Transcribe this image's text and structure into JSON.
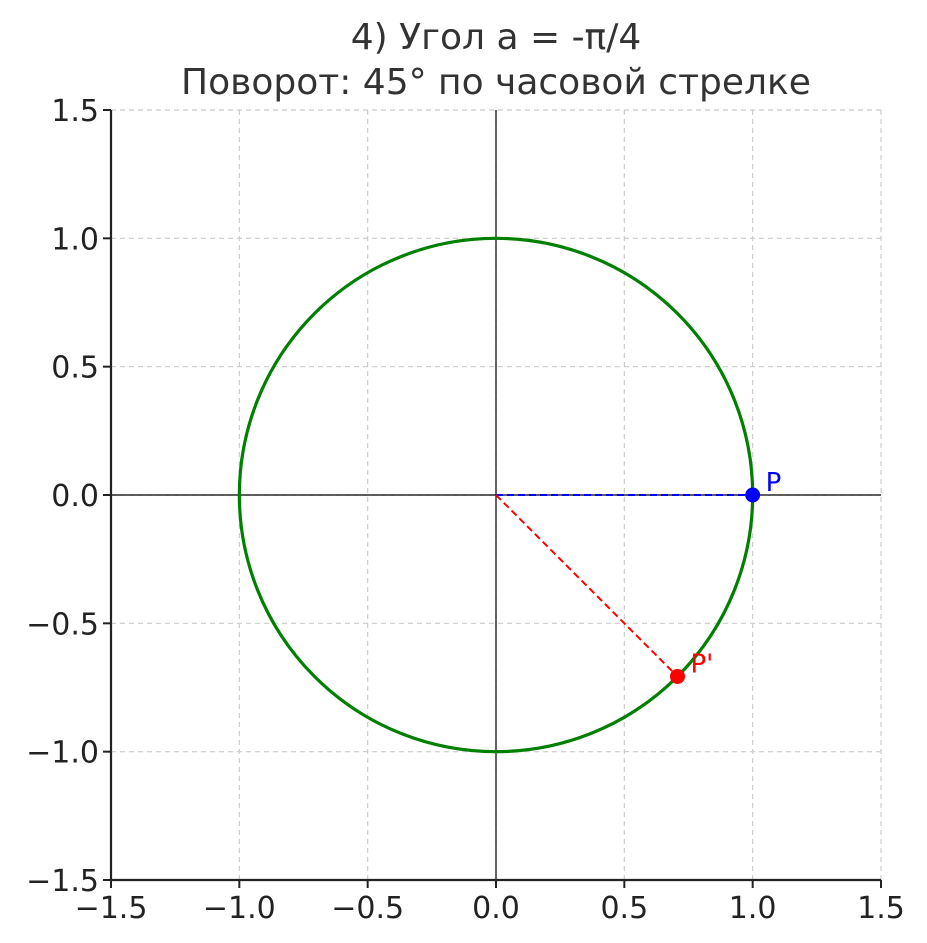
{
  "chart_data": {
    "type": "line",
    "title": "4) Угол a = -π/4",
    "subtitle": "Поворот: 45° по часовой стрелке",
    "xlabel": "",
    "ylabel": "",
    "xlim": [
      -1.5,
      1.5
    ],
    "ylim": [
      -1.5,
      1.5
    ],
    "grid": true,
    "aspect": "equal",
    "x_ticks": [
      -1.5,
      -1.0,
      -0.5,
      0.0,
      0.5,
      1.0,
      1.5
    ],
    "y_ticks": [
      -1.5,
      -1.0,
      -0.5,
      0.0,
      0.5,
      1.0,
      1.5
    ],
    "x_tick_labels": [
      "−1.5",
      "−1.0",
      "−0.5",
      "0.0",
      "0.5",
      "1.0",
      "1.5"
    ],
    "y_tick_labels": [
      "−1.5",
      "−1.0",
      "−0.5",
      "0.0",
      "0.5",
      "1.0",
      "1.5"
    ],
    "circle": {
      "center": [
        0,
        0
      ],
      "radius": 1,
      "color": "#008000"
    },
    "points": [
      {
        "label": "P",
        "x": 1.0,
        "y": 0.0,
        "color": "#0000ff"
      },
      {
        "label": "P'",
        "x": 0.7071,
        "y": -0.7071,
        "color": "#ff0000"
      }
    ],
    "segments": [
      {
        "from": [
          0,
          0
        ],
        "to": [
          1.0,
          0.0
        ],
        "color": "#0000ff",
        "style": "dashed"
      },
      {
        "from": [
          0,
          0
        ],
        "to": [
          0.7071,
          -0.7071
        ],
        "color": "#ff0000",
        "style": "dashed"
      }
    ],
    "axis_lines": {
      "x": 0,
      "y": 0,
      "color": "#000000"
    }
  }
}
